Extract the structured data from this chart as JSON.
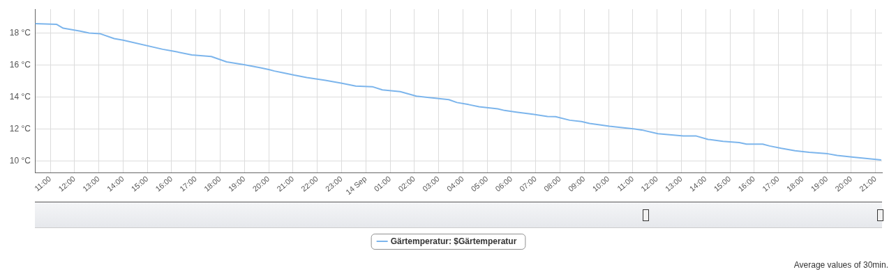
{
  "chart_data": {
    "type": "line",
    "x": [
      "--09-13T10:23",
      "--09-13T11:16",
      "--09-13T11:32",
      "--09-13T12:14",
      "--09-13T12:36",
      "--09-13T13:04",
      "--09-13T13:38",
      "--09-13T14:00",
      "--09-13T15:38",
      "--09-13T16:01",
      "--09-13T16:50",
      "--09-13T17:38",
      "--09-13T18:16",
      "--09-13T18:59",
      "--09-13T19:40",
      "--09-13T20:02",
      "--09-13T20:14",
      "--09-13T20:34",
      "--09-13T21:03",
      "--09-13T21:34",
      "--09-13T22:20",
      "--09-13T23:01",
      "--09-13T23:35",
      "--09-14T00:16",
      "--09-14T00:41",
      "--09-14T01:25",
      "--09-14T02:05",
      "--09-14T02:28",
      "--09-14T03:25",
      "--09-14T03:45",
      "--09-14T04:14",
      "--09-14T04:40",
      "--09-14T05:26",
      "--09-14T05:43",
      "--09-14T06:12",
      "--09-14T06:46",
      "--09-14T07:29",
      "--09-14T07:49",
      "--09-14T08:24",
      "--09-14T08:53",
      "--09-14T09:13",
      "--09-14T09:38",
      "--09-14T10:02",
      "--09-14T11:05",
      "--09-14T11:22",
      "--09-14T12:02",
      "--09-14T13:05",
      "--09-14T13:37",
      "--09-14T14:06",
      "--09-14T14:43",
      "--09-14T15:23",
      "--09-14T15:41",
      "--09-14T16:21",
      "--09-14T16:38",
      "--09-14T17:07",
      "--09-14T17:41",
      "--09-14T18:16",
      "--09-14T19:02",
      "--09-14T19:25",
      "--09-14T20:05",
      "--09-14T21:14"
    ],
    "series": [
      {
        "name": "Gärtemperatur: $Gärtemperatur",
        "color": "#7cb5ec",
        "values": [
          18.6,
          18.55,
          18.31,
          18.13,
          18.01,
          17.96,
          17.66,
          17.56,
          16.99,
          16.89,
          16.64,
          16.54,
          16.2,
          16.03,
          15.83,
          15.71,
          15.63,
          15.53,
          15.37,
          15.22,
          15.05,
          14.86,
          14.69,
          14.65,
          14.45,
          14.34,
          14.06,
          13.99,
          13.84,
          13.66,
          13.53,
          13.39,
          13.26,
          13.16,
          13.06,
          12.95,
          12.78,
          12.77,
          12.55,
          12.47,
          12.35,
          12.26,
          12.17,
          12.0,
          11.94,
          11.71,
          11.56,
          11.56,
          11.35,
          11.23,
          11.15,
          11.05,
          11.05,
          10.94,
          10.79,
          10.64,
          10.54,
          10.45,
          10.35,
          10.24,
          10.06
        ]
      }
    ],
    "xlim": [
      "--09-13T10:22",
      "--09-14T21:16"
    ],
    "xticks": [
      {
        "value": "--09-13T11:00",
        "label": "11:00"
      },
      {
        "value": "--09-13T12:00",
        "label": "12:00"
      },
      {
        "value": "--09-13T13:00",
        "label": "13:00"
      },
      {
        "value": "--09-13T14:00",
        "label": "14:00"
      },
      {
        "value": "--09-13T15:00",
        "label": "15:00"
      },
      {
        "value": "--09-13T16:00",
        "label": "16:00"
      },
      {
        "value": "--09-13T17:00",
        "label": "17:00"
      },
      {
        "value": "--09-13T18:00",
        "label": "18:00"
      },
      {
        "value": "--09-13T19:00",
        "label": "19:00"
      },
      {
        "value": "--09-13T20:00",
        "label": "20:00"
      },
      {
        "value": "--09-13T21:00",
        "label": "21:00"
      },
      {
        "value": "--09-13T22:00",
        "label": "22:00"
      },
      {
        "value": "--09-13T23:00",
        "label": "23:00"
      },
      {
        "value": "--09-14T00:00",
        "label": "14 Sep"
      },
      {
        "value": "--09-14T01:00",
        "label": "01:00"
      },
      {
        "value": "--09-14T02:00",
        "label": "02:00"
      },
      {
        "value": "--09-14T03:00",
        "label": "03:00"
      },
      {
        "value": "--09-14T04:00",
        "label": "04:00"
      },
      {
        "value": "--09-14T05:00",
        "label": "05:00"
      },
      {
        "value": "--09-14T06:00",
        "label": "06:00"
      },
      {
        "value": "--09-14T07:00",
        "label": "07:00"
      },
      {
        "value": "--09-14T08:00",
        "label": "08:00"
      },
      {
        "value": "--09-14T09:00",
        "label": "09:00"
      },
      {
        "value": "--09-14T10:00",
        "label": "10:00"
      },
      {
        "value": "--09-14T11:00",
        "label": "11:00"
      },
      {
        "value": "--09-14T12:00",
        "label": "12:00"
      },
      {
        "value": "--09-14T13:00",
        "label": "13:00"
      },
      {
        "value": "--09-14T14:00",
        "label": "14:00"
      },
      {
        "value": "--09-14T15:00",
        "label": "15:00"
      },
      {
        "value": "--09-14T16:00",
        "label": "16:00"
      },
      {
        "value": "--09-14T17:00",
        "label": "17:00"
      },
      {
        "value": "--09-14T18:00",
        "label": "18:00"
      },
      {
        "value": "--09-14T19:00",
        "label": "19:00"
      },
      {
        "value": "--09-14T20:00",
        "label": "20:00"
      },
      {
        "value": "--09-14T21:00",
        "label": "21:00"
      }
    ],
    "ylim": [
      9.28,
      19.5
    ],
    "yticks": [
      {
        "value": 10,
        "label": "10 °C"
      },
      {
        "value": 12,
        "label": "12 °C"
      },
      {
        "value": 14,
        "label": "14 °C"
      },
      {
        "value": 16,
        "label": "16 °C"
      },
      {
        "value": 18,
        "label": "18 °C"
      }
    ],
    "grid": true,
    "legend": "bottom",
    "marker": "none",
    "line_style": "solid",
    "annotations": [
      "Average values of 30min."
    ]
  }
}
